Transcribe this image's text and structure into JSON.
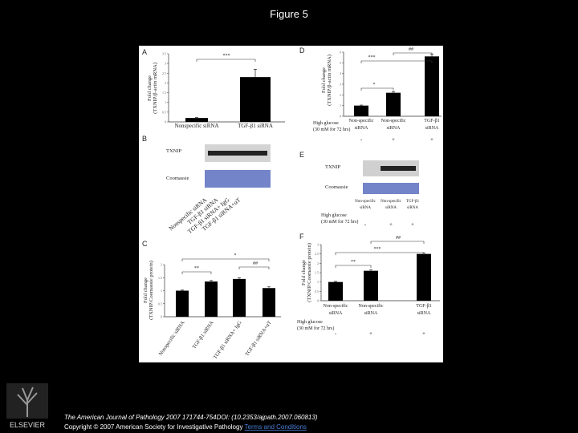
{
  "header": {
    "title": "Figure 5"
  },
  "figure": {
    "panels": [
      {
        "type": "bar",
        "letter": "A",
        "ylabel": [
          "Fold change",
          "(TXNIP/β-actin mRNA)"
        ],
        "categories": [
          [
            "Nonspecific siRNA"
          ],
          [
            "TGF-β1 siRNA"
          ]
        ],
        "values": [
          0.2,
          2.3
        ],
        "errors": [
          0.02,
          0.4
        ],
        "ylim": [
          0,
          3.5
        ],
        "yticks": [
          0,
          0.5,
          1,
          1.5,
          2,
          2.5,
          3,
          3.5
        ],
        "annotations": [
          "***"
        ]
      },
      {
        "type": "blot",
        "letter": "B",
        "rows": [
          "TXNIP",
          "Coomassie"
        ],
        "lanes": [
          "Nonspecific siRNA",
          "TGF-β1 siRNA",
          "TGF-β1 siRNA+ IgG",
          "TGF-β1 siRNA+αT"
        ]
      },
      {
        "type": "bar",
        "letter": "C",
        "ylabel": [
          "Fold change",
          "(TXNIP/Coomassie protein)"
        ],
        "categories": [
          [
            "Nonspecific siRNA"
          ],
          [
            "TGF-β1 siRNA"
          ],
          [
            "TGF-β1 siRNA+ IgG"
          ],
          [
            "TGF-β1 siRNA+αT"
          ]
        ],
        "values": [
          1,
          1.35,
          1.45,
          1.1
        ],
        "errors": [
          0.02,
          0.04,
          0.04,
          0.05
        ],
        "ylim": [
          0,
          2
        ],
        "yticks": [
          0,
          0.5,
          1,
          1.5,
          2
        ],
        "annotations": [
          "**",
          "*",
          "##"
        ]
      },
      {
        "type": "bar",
        "letter": "D",
        "ylabel": [
          "Fold change",
          "(TXNIP/β-actin mRNA)"
        ],
        "categories": [
          [
            "Non-specific",
            "siRNA"
          ],
          [
            "Non-specific",
            "siRNA"
          ],
          [
            "TGF-β1",
            "siRNA"
          ]
        ],
        "values": [
          1,
          2.2,
          5.6
        ],
        "errors": [
          0.05,
          0.1,
          0.2
        ],
        "ylim": [
          0,
          6
        ],
        "yticks": [
          0,
          1,
          2,
          3,
          4,
          5,
          6
        ],
        "annotations": [
          "*",
          "***",
          "##"
        ],
        "glucose": {
          "label": [
            "High glucose",
            "(30 mM for 72 hrs)"
          ],
          "values": [
            "-",
            "+",
            "+"
          ]
        }
      },
      {
        "type": "blot",
        "letter": "E",
        "rows": [
          "TXNIP",
          "Coomassie"
        ],
        "lanes": [
          [
            "Non-specific",
            "siRNA"
          ],
          [
            "Non-specific",
            "siRNA"
          ],
          [
            "TGF-β1",
            "siRNA"
          ]
        ],
        "glucose": {
          "label": [
            "High glucose",
            "(30 mM for 72 hrs)"
          ],
          "values": [
            "-",
            "+",
            "+"
          ]
        }
      },
      {
        "type": "bar",
        "letter": "F",
        "ylabel": [
          "Fold change",
          "(TXNIP/Coomassie protein)"
        ],
        "categories": [
          [
            "Non-specific",
            "siRNA"
          ],
          [
            "Non-specific",
            "siRNA"
          ],
          [
            "TGF-β1",
            "siRNA"
          ]
        ],
        "values": [
          1,
          1.6,
          2.5
        ],
        "errors": [
          0.03,
          0.05,
          0.05
        ],
        "ylim": [
          0,
          3
        ],
        "yticks": [
          0,
          0.5,
          1,
          1.5,
          2,
          2.5,
          3
        ],
        "annotations": [
          "**",
          "***",
          "##"
        ],
        "glucose": {
          "label": [
            "High glucose",
            "(30 mM for 72 hrs)"
          ],
          "values": [
            "-",
            "+",
            "+"
          ]
        }
      }
    ]
  },
  "footer": {
    "logo": "ELSEVIER",
    "citation": "The American Journal of Pathology 2007 171744-754DOI: (10.2353/ajpath.2007.060813)",
    "copyright": "Copyright © 2007 American Society for Investigative Pathology",
    "link": "Terms and Conditions"
  }
}
